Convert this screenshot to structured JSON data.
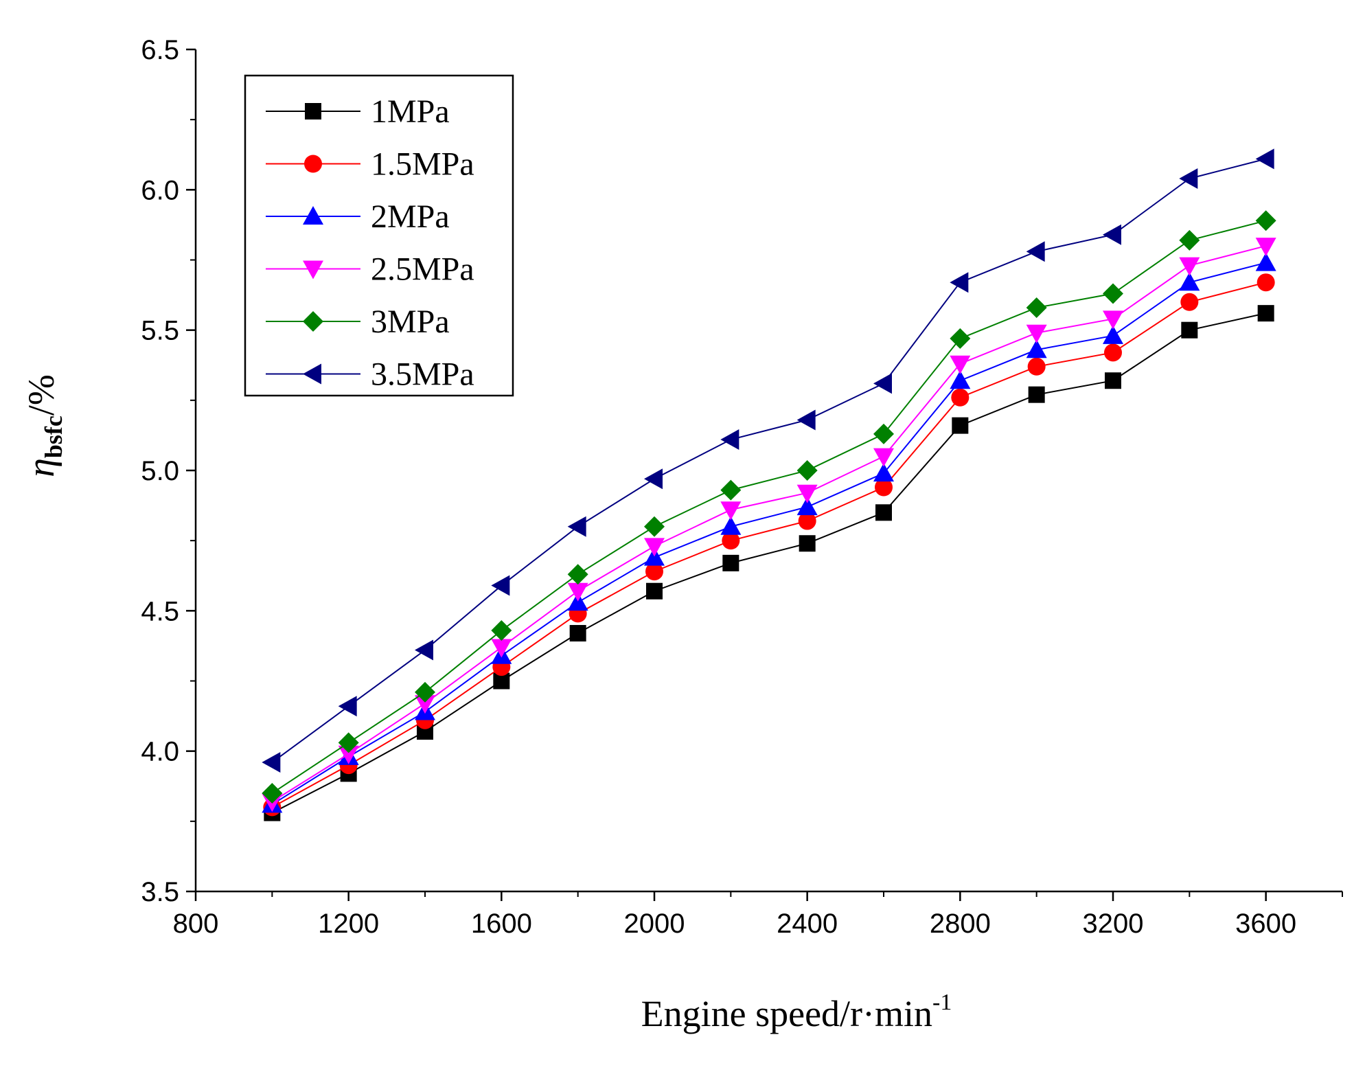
{
  "chart_data": {
    "type": "line",
    "title": "",
    "xlabel": "Engine speed/r·min",
    "xlabel_sup": "-1",
    "ylabel_symbol": "η",
    "ylabel_subscript": "bsfc",
    "ylabel_unit": "/%",
    "xlim": [
      800,
      3800
    ],
    "ylim": [
      3.5,
      6.5
    ],
    "x_ticks": [
      800,
      1200,
      1600,
      2000,
      2400,
      2800,
      3200,
      3600
    ],
    "y_ticks": [
      3.5,
      4.0,
      4.5,
      5.0,
      5.5,
      6.0,
      6.5
    ],
    "y_tick_labels": [
      "3.5",
      "4.0",
      "4.5",
      "5.0",
      "5.5",
      "6.0",
      "6.5"
    ],
    "x_tick_labels": [
      "800",
      "1200",
      "1600",
      "2000",
      "2400",
      "2800",
      "3200",
      "3600"
    ],
    "grid": false,
    "legend_position": "top-left",
    "x": [
      1000,
      1200,
      1400,
      1600,
      1800,
      2000,
      2200,
      2400,
      2600,
      2800,
      3000,
      3200,
      3400,
      3600
    ],
    "series": [
      {
        "name": "1MPa",
        "color": "#000000",
        "marker": "square",
        "values": [
          3.78,
          3.92,
          4.07,
          4.25,
          4.42,
          4.57,
          4.67,
          4.74,
          4.85,
          5.16,
          5.27,
          5.32,
          5.5,
          5.56
        ]
      },
      {
        "name": "1.5MPa",
        "color": "#ff0000",
        "marker": "circle",
        "values": [
          3.8,
          3.95,
          4.11,
          4.3,
          4.49,
          4.64,
          4.75,
          4.82,
          4.94,
          5.26,
          5.37,
          5.42,
          5.6,
          5.67
        ]
      },
      {
        "name": "2MPa",
        "color": "#0000ff",
        "marker": "triangle-up",
        "values": [
          3.81,
          3.98,
          4.14,
          4.34,
          4.53,
          4.69,
          4.8,
          4.87,
          4.99,
          5.32,
          5.43,
          5.48,
          5.67,
          5.74
        ]
      },
      {
        "name": "2.5MPa",
        "color": "#ff00ff",
        "marker": "triangle-down",
        "values": [
          3.82,
          3.99,
          4.17,
          4.37,
          4.57,
          4.73,
          4.86,
          4.92,
          5.05,
          5.38,
          5.49,
          5.54,
          5.73,
          5.8
        ]
      },
      {
        "name": "3MPa",
        "color": "#008000",
        "marker": "diamond",
        "values": [
          3.85,
          4.03,
          4.21,
          4.43,
          4.63,
          4.8,
          4.93,
          5.0,
          5.13,
          5.47,
          5.58,
          5.63,
          5.82,
          5.89
        ]
      },
      {
        "name": "3.5MPa",
        "color": "#000080",
        "marker": "triangle-left",
        "values": [
          3.96,
          4.16,
          4.36,
          4.59,
          4.8,
          4.97,
          5.11,
          5.18,
          5.31,
          5.67,
          5.78,
          5.84,
          6.04,
          6.11
        ]
      }
    ]
  }
}
